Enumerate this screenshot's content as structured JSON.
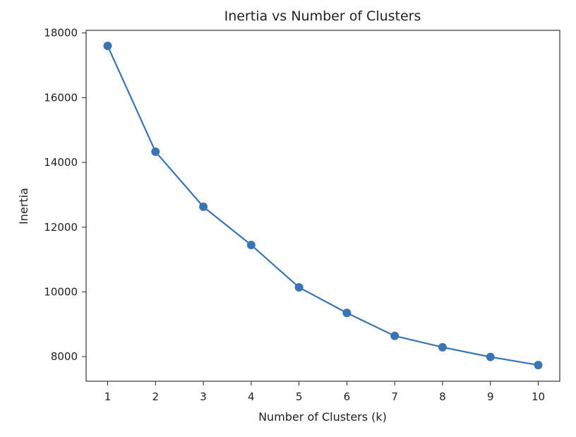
{
  "chart_data": {
    "type": "line",
    "title": "Inertia vs Number of Clusters",
    "xlabel": "Number of Clusters (k)",
    "ylabel": "Inertia",
    "x": [
      1,
      2,
      3,
      4,
      5,
      6,
      7,
      8,
      9,
      10
    ],
    "series": [
      {
        "values": [
          17600,
          14330,
          12630,
          11450,
          10140,
          9350,
          8640,
          8290,
          7990,
          7740
        ],
        "color": "#3a74b4",
        "marker": "circle"
      }
    ],
    "xticks": [
      1,
      2,
      3,
      4,
      5,
      6,
      7,
      8,
      9,
      10
    ],
    "yticks": [
      8000,
      10000,
      12000,
      14000,
      16000,
      18000
    ],
    "xlim": [
      0.55,
      10.45
    ],
    "ylim": [
      7240,
      18080
    ],
    "grid": false,
    "legend": "none"
  }
}
